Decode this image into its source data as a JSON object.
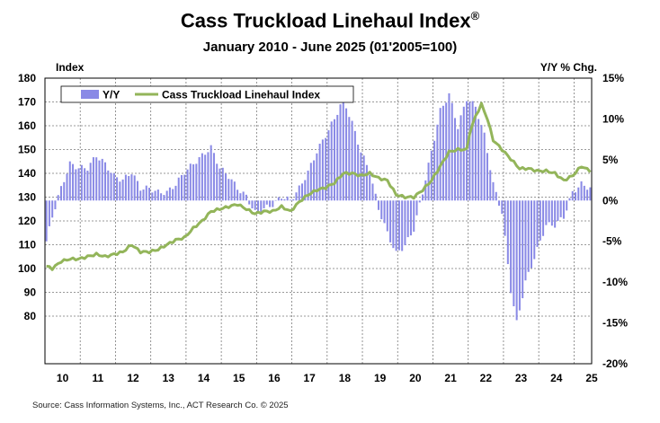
{
  "title": "Cass Truckload Linehaul Index",
  "title_mark": "®",
  "subtitle": "January 2010 - June 2025 (01'2005=100)",
  "left_axis_title": "Index",
  "right_axis_title": "Y/Y % Chg.",
  "source": "Source: Cass Information Systems, Inc., ACT Research Co. © 2025",
  "colors": {
    "index_line": "#93b55a",
    "yy_bar": "#8a8ae6",
    "grid": "#7a7a7a"
  },
  "chart_data": {
    "type": "bar+line",
    "x_tick_labels": [
      "10",
      "11",
      "12",
      "13",
      "14",
      "15",
      "16",
      "17",
      "18",
      "19",
      "20",
      "21",
      "22",
      "23",
      "24",
      "25"
    ],
    "left_axis": {
      "ylim": [
        60,
        180
      ],
      "tick_labels": [
        "80",
        "90",
        "100",
        "110",
        "120",
        "130",
        "140",
        "150",
        "160",
        "170",
        "180"
      ],
      "tick_values": [
        80,
        90,
        100,
        110,
        120,
        130,
        140,
        150,
        160,
        170,
        180
      ]
    },
    "right_axis": {
      "ylim": [
        -20,
        15
      ],
      "tick_labels": [
        "-20%",
        "-15%",
        "-10%",
        "-5%",
        "0%",
        "5%",
        "10%",
        "15%"
      ],
      "tick_values": [
        -20,
        -15,
        -10,
        -5,
        0,
        5,
        10,
        15
      ]
    },
    "legend": [
      {
        "label": "Y/Y",
        "kind": "bar"
      },
      {
        "label": "Cass Truckload Linehaul Index",
        "kind": "line"
      }
    ],
    "grid": true,
    "legend_position": "top-left",
    "start": "2010-01",
    "end": "2025-06",
    "index_anchors": [
      [
        "2010-01",
        101
      ],
      [
        "2010-03",
        100
      ],
      [
        "2010-06",
        103
      ],
      [
        "2010-09",
        104
      ],
      [
        "2010-12",
        104
      ],
      [
        "2011-03",
        105
      ],
      [
        "2011-06",
        106
      ],
      [
        "2011-09",
        105
      ],
      [
        "2011-12",
        106
      ],
      [
        "2012-03",
        107
      ],
      [
        "2012-06",
        110
      ],
      [
        "2012-09",
        107
      ],
      [
        "2012-12",
        107
      ],
      [
        "2013-03",
        108
      ],
      [
        "2013-06",
        110
      ],
      [
        "2013-09",
        112
      ],
      [
        "2013-12",
        113
      ],
      [
        "2014-03",
        117
      ],
      [
        "2014-06",
        120
      ],
      [
        "2014-09",
        124
      ],
      [
        "2014-12",
        125
      ],
      [
        "2015-03",
        126
      ],
      [
        "2015-06",
        127
      ],
      [
        "2015-09",
        125
      ],
      [
        "2015-12",
        123
      ],
      [
        "2016-03",
        124
      ],
      [
        "2016-06",
        124
      ],
      [
        "2016-09",
        126
      ],
      [
        "2016-12",
        124
      ],
      [
        "2017-03",
        128
      ],
      [
        "2017-06",
        131
      ],
      [
        "2017-09",
        133
      ],
      [
        "2017-12",
        134
      ],
      [
        "2018-03",
        136
      ],
      [
        "2018-06",
        140
      ],
      [
        "2018-09",
        140
      ],
      [
        "2018-12",
        139
      ],
      [
        "2019-03",
        140
      ],
      [
        "2019-06",
        138
      ],
      [
        "2019-09",
        137
      ],
      [
        "2019-12",
        131
      ],
      [
        "2020-03",
        130
      ],
      [
        "2020-06",
        130
      ],
      [
        "2020-09",
        133
      ],
      [
        "2020-12",
        137
      ],
      [
        "2021-03",
        143
      ],
      [
        "2021-06",
        149
      ],
      [
        "2021-09",
        150
      ],
      [
        "2021-12",
        150
      ],
      [
        "2022-01",
        157
      ],
      [
        "2022-03",
        164
      ],
      [
        "2022-05",
        169
      ],
      [
        "2022-07",
        163
      ],
      [
        "2022-09",
        154
      ],
      [
        "2022-12",
        150
      ],
      [
        "2023-03",
        146
      ],
      [
        "2023-06",
        142
      ],
      [
        "2023-09",
        142
      ],
      [
        "2023-12",
        141
      ],
      [
        "2024-03",
        141
      ],
      [
        "2024-06",
        140
      ],
      [
        "2024-09",
        137
      ],
      [
        "2024-12",
        139
      ],
      [
        "2025-03",
        143
      ],
      [
        "2025-06",
        141
      ]
    ],
    "yy_anchors": [
      [
        "2010-01",
        -5.0
      ],
      [
        "2010-03",
        -2.0
      ],
      [
        "2010-05",
        0.5
      ],
      [
        "2010-07",
        2.5
      ],
      [
        "2010-09",
        4.5
      ],
      [
        "2010-12",
        4.0
      ],
      [
        "2011-03",
        4.0
      ],
      [
        "2011-06",
        5.5
      ],
      [
        "2011-09",
        4.5
      ],
      [
        "2011-12",
        3.0
      ],
      [
        "2012-03",
        2.5
      ],
      [
        "2012-06",
        3.5
      ],
      [
        "2012-09",
        1.5
      ],
      [
        "2012-12",
        1.5
      ],
      [
        "2013-03",
        1.0
      ],
      [
        "2013-06",
        1.0
      ],
      [
        "2013-09",
        2.0
      ],
      [
        "2013-12",
        3.5
      ],
      [
        "2014-03",
        4.5
      ],
      [
        "2014-06",
        5.5
      ],
      [
        "2014-09",
        6.5
      ],
      [
        "2014-12",
        4.0
      ],
      [
        "2015-03",
        3.0
      ],
      [
        "2015-06",
        1.5
      ],
      [
        "2015-09",
        0.5
      ],
      [
        "2015-12",
        -1.5
      ],
      [
        "2016-03",
        -1.0
      ],
      [
        "2016-06",
        -0.5
      ],
      [
        "2016-09",
        0.5
      ],
      [
        "2016-12",
        0.0
      ],
      [
        "2017-03",
        1.5
      ],
      [
        "2017-06",
        3.5
      ],
      [
        "2017-09",
        6.0
      ],
      [
        "2017-12",
        8.0
      ],
      [
        "2018-03",
        10.0
      ],
      [
        "2018-06",
        12.5
      ],
      [
        "2018-09",
        9.5
      ],
      [
        "2018-12",
        6.0
      ],
      [
        "2019-03",
        3.5
      ],
      [
        "2019-06",
        -1.0
      ],
      [
        "2019-09",
        -4.0
      ],
      [
        "2019-12",
        -6.5
      ],
      [
        "2020-03",
        -5.5
      ],
      [
        "2020-06",
        -3.5
      ],
      [
        "2020-09",
        1.0
      ],
      [
        "2020-12",
        6.0
      ],
      [
        "2021-03",
        11.0
      ],
      [
        "2021-06",
        13.0
      ],
      [
        "2021-09",
        9.0
      ],
      [
        "2021-12",
        12.5
      ],
      [
        "2022-03",
        11.5
      ],
      [
        "2022-06",
        8.0
      ],
      [
        "2022-09",
        2.0
      ],
      [
        "2022-12",
        -1.5
      ],
      [
        "2023-03",
        -11.0
      ],
      [
        "2023-05",
        -15.0
      ],
      [
        "2023-08",
        -10.0
      ],
      [
        "2023-12",
        -6.0
      ],
      [
        "2024-03",
        -3.0
      ],
      [
        "2024-06",
        -3.0
      ],
      [
        "2024-09",
        -2.0
      ],
      [
        "2024-12",
        1.0
      ],
      [
        "2025-03",
        2.0
      ],
      [
        "2025-06",
        1.5
      ]
    ]
  }
}
